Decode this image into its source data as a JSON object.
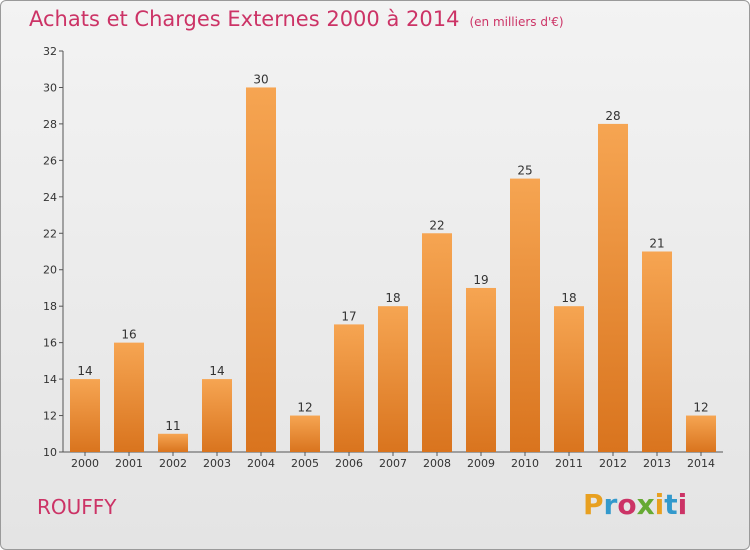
{
  "header": {
    "title": "Achats et Charges Externes 2000 à 2014",
    "unit": "(en milliers d'€)"
  },
  "commune": "ROUFFY",
  "logo": {
    "letters": [
      "P",
      "r",
      "o",
      "x",
      "i",
      "t",
      "i"
    ],
    "colors": [
      "#e8a020",
      "#3399cc",
      "#cc3366",
      "#66aa33",
      "#e8a020",
      "#3399cc",
      "#cc3366"
    ]
  },
  "chart_data": {
    "type": "bar",
    "title": "Achats et Charges Externes 2000 à 2014",
    "subtitle": "(en milliers d'€)",
    "categories": [
      "2000",
      "2001",
      "2002",
      "2003",
      "2004",
      "2005",
      "2006",
      "2007",
      "2008",
      "2009",
      "2010",
      "2011",
      "2012",
      "2013",
      "2014"
    ],
    "values": [
      14,
      16,
      11,
      14,
      30,
      12,
      17,
      18,
      22,
      19,
      25,
      18,
      28,
      21,
      12
    ],
    "ylim": [
      10,
      32
    ],
    "yticks": [
      10,
      12,
      14,
      16,
      18,
      20,
      22,
      24,
      26,
      28,
      30,
      32
    ],
    "grid": false,
    "bar_color": "#f0913a"
  }
}
